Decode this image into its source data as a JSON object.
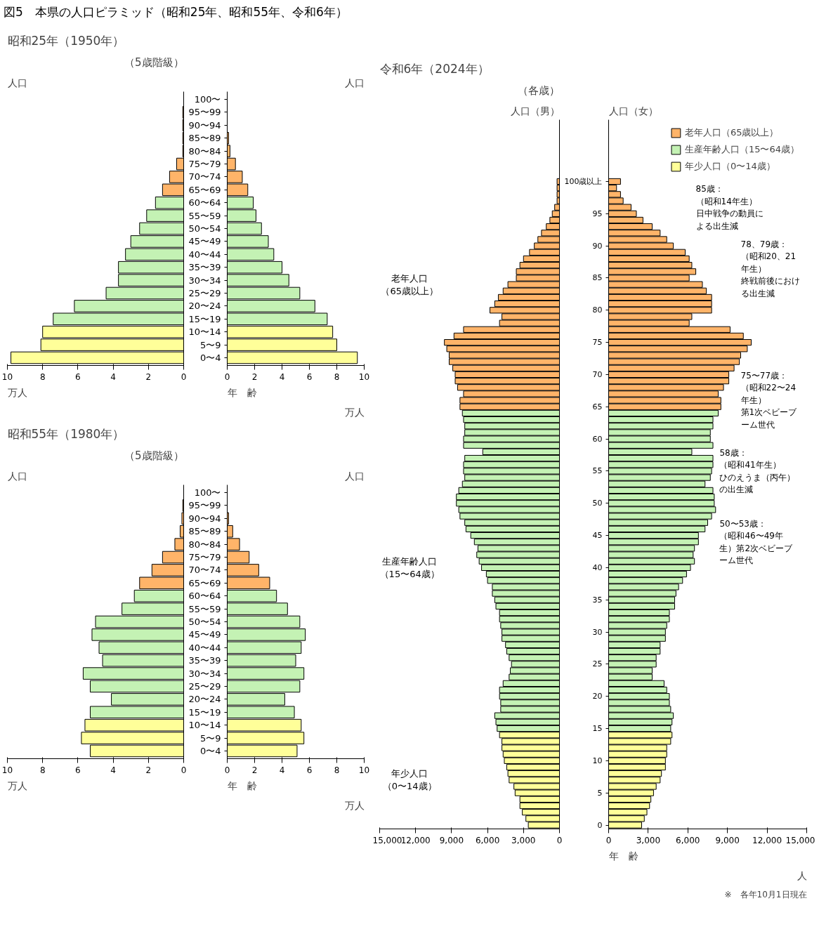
{
  "chart_data": [
    {
      "type": "bar",
      "orientation": "horizontal",
      "title": "昭和25年（1950年）",
      "subtitle": "（5歳階級）",
      "ylabel": "人口",
      "xlabel": "万人",
      "annotations": [
        "図5　本県の人口ピラミッド（昭和25年、昭和55年、令和6年）"
      ],
      "categories": [
        "100〜",
        "95〜99",
        "90〜94",
        "85〜89",
        "80〜84",
        "75〜79",
        "70〜74",
        "65〜69",
        "60〜64",
        "55〜59",
        "50〜54",
        "45〜49",
        "40〜44",
        "35〜39",
        "30〜34",
        "25〜29",
        "20〜24",
        "15〜19",
        "10〜14",
        "5〜9",
        "0〜4"
      ],
      "values": [
        0,
        0.05,
        0.05,
        0.05,
        0.05,
        0.4,
        0.8,
        1.2,
        1.6,
        2.1,
        2.5,
        3.0,
        3.3,
        3.7,
        3.7,
        4.4,
        6.2,
        7.4,
        8.0,
        8.1,
        9.8
      ],
      "colors": [
        "#ffb469",
        "#ffb469",
        "#ffb469",
        "#ffb469",
        "#ffb469",
        "#ffb469",
        "#ffb469",
        "#ffb469",
        "#c4f2b4",
        "#c4f2b4",
        "#c4f2b4",
        "#c4f2b4",
        "#c4f2b4",
        "#c4f2b4",
        "#c4f2b4",
        "#c4f2b4",
        "#c4f2b4",
        "#c4f2b4",
        "#ffff99",
        "#ffff99",
        "#ffff99"
      ],
      "xlim": [
        10,
        0
      ],
      "xticks": [
        0,
        2,
        4,
        6,
        8,
        10
      ],
      "tick_labels": "x"
    },
    {
      "type": "bar",
      "orientation": "horizontal",
      "ylabel": "人口",
      "xlabel": "万人",
      "annotations": [
        "年　齢"
      ],
      "categories": [
        "100〜",
        "95〜99",
        "90〜94",
        "85〜89",
        "80〜84",
        "75〜79",
        "70〜74",
        "65〜69",
        "60〜64",
        "55〜59",
        "50〜54",
        "45〜49",
        "40〜44",
        "35〜39",
        "30〜34",
        "25〜29",
        "20〜24",
        "15〜19",
        "10〜14",
        "5〜9",
        "0〜4"
      ],
      "values": [
        null,
        null,
        null,
        0.1,
        0.2,
        0.6,
        1.1,
        1.5,
        1.9,
        2.1,
        2.5,
        3.0,
        3.4,
        4.0,
        4.5,
        5.3,
        6.4,
        7.3,
        7.7,
        8.0,
        9.5
      ],
      "colors": [
        "#ffb469",
        "#ffb469",
        "#ffb469",
        "#ffb469",
        "#ffb469",
        "#ffb469",
        "#ffb469",
        "#ffb469",
        "#c4f2b4",
        "#c4f2b4",
        "#c4f2b4",
        "#c4f2b4",
        "#c4f2b4",
        "#c4f2b4",
        "#c4f2b4",
        "#c4f2b4",
        "#c4f2b4",
        "#c4f2b4",
        "#ffff99",
        "#ffff99",
        "#ffff99"
      ],
      "xlim": [
        0,
        10
      ],
      "xticks": [
        0,
        2,
        4,
        6,
        8,
        10
      ]
    },
    {
      "type": "bar",
      "orientation": "horizontal",
      "title": "昭和55年（1980年）",
      "subtitle": "（5歳階級）",
      "ylabel": "人口",
      "xlabel": "万人",
      "categories": [
        "100〜",
        "95〜99",
        "90〜94",
        "85〜89",
        "80〜84",
        "75〜79",
        "70〜74",
        "65〜69",
        "60〜64",
        "55〜59",
        "50〜54",
        "45〜49",
        "40〜44",
        "35〜39",
        "30〜34",
        "25〜29",
        "20〜24",
        "15〜19",
        "10〜14",
        "5〜9",
        "0〜4"
      ],
      "values": [
        0,
        0.05,
        0.1,
        0.2,
        0.5,
        1.2,
        1.8,
        2.5,
        2.8,
        3.5,
        5.0,
        5.2,
        4.8,
        4.6,
        5.7,
        5.3,
        4.1,
        5.3,
        5.6,
        5.8,
        5.3
      ],
      "colors": [
        "#ffb469",
        "#ffb469",
        "#ffb469",
        "#ffb469",
        "#ffb469",
        "#ffb469",
        "#ffb469",
        "#ffb469",
        "#c4f2b4",
        "#c4f2b4",
        "#c4f2b4",
        "#c4f2b4",
        "#c4f2b4",
        "#c4f2b4",
        "#c4f2b4",
        "#c4f2b4",
        "#c4f2b4",
        "#c4f2b4",
        "#ffff99",
        "#ffff99",
        "#ffff99"
      ],
      "xlim": [
        10,
        0
      ],
      "xticks": [
        0,
        2,
        4,
        6,
        8,
        10
      ],
      "tick_labels": "x"
    },
    {
      "type": "bar",
      "orientation": "horizontal",
      "ylabel": "人口",
      "xlabel": "万人",
      "annotations": [
        "年　齢"
      ],
      "categories": [
        "100〜",
        "95〜99",
        "90〜94",
        "85〜89",
        "80〜84",
        "75〜79",
        "70〜74",
        "65〜69",
        "60〜64",
        "55〜59",
        "50〜54",
        "45〜49",
        "40〜44",
        "35〜39",
        "30〜34",
        "25〜29",
        "20〜24",
        "15〜19",
        "10〜14",
        "5〜9",
        "0〜4"
      ],
      "values": [
        null,
        null,
        0.1,
        0.4,
        0.9,
        1.6,
        2.3,
        3.1,
        3.6,
        4.4,
        5.3,
        5.7,
        5.4,
        5.0,
        5.6,
        5.3,
        4.2,
        4.9,
        5.4,
        5.6,
        5.1
      ],
      "colors": [
        "#ffb469",
        "#ffb469",
        "#ffb469",
        "#ffb469",
        "#ffb469",
        "#ffb469",
        "#ffb469",
        "#ffb469",
        "#c4f2b4",
        "#c4f2b4",
        "#c4f2b4",
        "#c4f2b4",
        "#c4f2b4",
        "#c4f2b4",
        "#c4f2b4",
        "#c4f2b4",
        "#c4f2b4",
        "#c4f2b4",
        "#ffff99",
        "#ffff99",
        "#ffff99"
      ],
      "xlim": [
        0,
        10
      ],
      "xticks": [
        0,
        2,
        4,
        6,
        8,
        10
      ]
    },
    {
      "type": "bar",
      "orientation": "horizontal",
      "title": "令和6年（2024年）",
      "subtitle": "（各歳）",
      "ylabel": "人口（男）",
      "annotations": [
        "老年人口（65歳以上）",
        "生産年齢人口（15〜64歳）",
        "年少人口（0〜14歳）"
      ],
      "categories": [
        "100歳以上",
        null,
        null,
        null,
        null,
        "95",
        null,
        null,
        null,
        null,
        "90",
        null,
        null,
        null,
        null,
        "85",
        null,
        null,
        null,
        null,
        "80",
        null,
        null,
        null,
        null,
        "75",
        null,
        null,
        null,
        null,
        "70",
        null,
        null,
        null,
        null,
        "65",
        null,
        null,
        null,
        null,
        "60",
        null,
        null,
        null,
        null,
        "55",
        null,
        null,
        null,
        null,
        "50",
        null,
        null,
        null,
        null,
        "45",
        null,
        null,
        null,
        null,
        "40",
        null,
        null,
        null,
        null,
        "35",
        null,
        null,
        null,
        null,
        "30",
        null,
        null,
        null,
        null,
        "25",
        null,
        null,
        null,
        null,
        "20",
        null,
        null,
        null,
        null,
        "15",
        null,
        null,
        null,
        null,
        "10",
        null,
        null,
        null,
        null,
        "5",
        null,
        null,
        null,
        null,
        "0"
      ],
      "values": [
        200,
        200,
        200,
        200,
        400,
        600,
        800,
        1100,
        1500,
        1800,
        2100,
        2500,
        3000,
        3300,
        3600,
        3600,
        4300,
        4700,
        5100,
        5400,
        5800,
        4800,
        5000,
        8000,
        8800,
        9600,
        9400,
        9200,
        9200,
        8900,
        8700,
        8700,
        8500,
        8000,
        8300,
        8300,
        8100,
        8000,
        7900,
        7900,
        8000,
        8000,
        6400,
        7900,
        8000,
        8000,
        7900,
        8100,
        8400,
        8600,
        8600,
        8400,
        8300,
        7900,
        7800,
        7400,
        7100,
        6800,
        6900,
        6700,
        6500,
        6100,
        6000,
        5600,
        5600,
        5400,
        5300,
        5000,
        5000,
        4900,
        4800,
        4800,
        4500,
        4400,
        4200,
        4000,
        4100,
        4200,
        4700,
        5000,
        5000,
        4900,
        4900,
        5400,
        5300,
        5200,
        5000,
        4800,
        4800,
        4700,
        4600,
        4400,
        4300,
        4200,
        3800,
        3700,
        3300,
        3300,
        3100,
        2800,
        2600
      ],
      "colors": [
        "#ffb469",
        "#ffb469",
        "#ffb469",
        "#ffb469",
        "#ffb469",
        "#ffb469",
        "#ffb469",
        "#ffb469",
        "#ffb469",
        "#ffb469",
        "#ffb469",
        "#ffb469",
        "#ffb469",
        "#ffb469",
        "#ffb469",
        "#ffb469",
        "#ffb469",
        "#ffb469",
        "#ffb469",
        "#ffb469",
        "#ffb469",
        "#ffb469",
        "#ffb469",
        "#ffb469",
        "#ffb469",
        "#ffb469",
        "#ffb469",
        "#ffb469",
        "#ffb469",
        "#ffb469",
        "#ffb469",
        "#ffb469",
        "#ffb469",
        "#ffb469",
        "#ffb469",
        "#ffb469",
        "#c4f2b4",
        "#c4f2b4",
        "#c4f2b4",
        "#c4f2b4",
        "#c4f2b4",
        "#c4f2b4",
        "#c4f2b4",
        "#c4f2b4",
        "#c4f2b4",
        "#c4f2b4",
        "#c4f2b4",
        "#c4f2b4",
        "#c4f2b4",
        "#c4f2b4",
        "#c4f2b4",
        "#c4f2b4",
        "#c4f2b4",
        "#c4f2b4",
        "#c4f2b4",
        "#c4f2b4",
        "#c4f2b4",
        "#c4f2b4",
        "#c4f2b4",
        "#c4f2b4",
        "#c4f2b4",
        "#c4f2b4",
        "#c4f2b4",
        "#c4f2b4",
        "#c4f2b4",
        "#c4f2b4",
        "#c4f2b4",
        "#c4f2b4",
        "#c4f2b4",
        "#c4f2b4",
        "#c4f2b4",
        "#c4f2b4",
        "#c4f2b4",
        "#c4f2b4",
        "#c4f2b4",
        "#c4f2b4",
        "#c4f2b4",
        "#c4f2b4",
        "#c4f2b4",
        "#c4f2b4",
        "#c4f2b4",
        "#c4f2b4",
        "#c4f2b4",
        "#c4f2b4",
        "#c4f2b4",
        "#c4f2b4",
        "#ffff99",
        "#ffff99",
        "#ffff99",
        "#ffff99",
        "#ffff99",
        "#ffff99",
        "#ffff99",
        "#ffff99",
        "#ffff99",
        "#ffff99",
        "#ffff99",
        "#ffff99",
        "#ffff99",
        "#ffff99",
        "#ffff99"
      ],
      "xlim": [
        15000,
        0
      ],
      "xticks": [
        0,
        {
          "value": 3000,
          "label": "3,000"
        },
        {
          "value": 6000,
          "label": "6,000"
        },
        {
          "value": 9000,
          "label": "9,000"
        },
        {
          "value": 12000,
          "label": "12,000"
        },
        {
          "value": 15000,
          "label": "15,000"
        }
      ],
      "tick_labels": "x"
    },
    {
      "type": "bar",
      "orientation": "horizontal",
      "ylabel": "人口（女）",
      "xlabel": "人",
      "legend": "top right",
      "annotations": [
        "年　齢",
        "85歳：（昭和14年生）日中戦争の動員による出生減",
        "78、79歳：（昭和20、21年生）終戦前後における出生減",
        "75〜77歳：（昭和22〜24年生）第1次ベビーブーム世代",
        "58歳：（昭和41年生）ひのえうま（丙午）の出生減",
        "50〜53歳：（昭和46〜49年生）第2次ベビーブーム世代",
        "※　各年10月1日現在"
      ],
      "categories": [
        "100歳以上",
        null,
        null,
        null,
        null,
        "95",
        null,
        null,
        null,
        null,
        "90",
        null,
        null,
        null,
        null,
        "85",
        null,
        null,
        null,
        null,
        "80",
        null,
        null,
        null,
        null,
        "75",
        null,
        null,
        null,
        null,
        "70",
        null,
        null,
        null,
        null,
        "65",
        null,
        null,
        null,
        null,
        "60",
        null,
        null,
        null,
        null,
        "55",
        null,
        null,
        null,
        null,
        "50",
        null,
        null,
        null,
        null,
        "45",
        null,
        null,
        null,
        null,
        "40",
        null,
        null,
        null,
        null,
        "35",
        null,
        null,
        null,
        null,
        "30",
        null,
        null,
        null,
        null,
        "25",
        null,
        null,
        null,
        null,
        "20",
        null,
        null,
        null,
        null,
        "15",
        null,
        null,
        null,
        null,
        "10",
        null,
        null,
        null,
        null,
        "5",
        null,
        null,
        null,
        null,
        "0"
      ],
      "series": [
        {
          "name": "老年人口（65歳以上）",
          "color": "#ffb469",
          "values": [
            900,
            600,
            900,
            1100,
            1700,
            2100,
            2600,
            3300,
            3900,
            4400,
            4900,
            5800,
            6100,
            6300,
            6600,
            6100,
            7100,
            7400,
            7800,
            7800,
            7800,
            6300,
            6100,
            9200,
            10200,
            10800,
            10500,
            10000,
            9900,
            9500,
            9100,
            9100,
            8700,
            8300,
            8500,
            8500,
            null,
            null,
            null,
            null,
            null,
            null,
            null,
            null,
            null,
            null,
            null,
            null,
            null,
            null,
            null,
            null,
            null,
            null,
            null,
            null,
            null,
            null,
            null,
            null,
            null,
            null,
            null,
            null,
            null,
            null,
            null,
            null,
            null,
            null,
            null,
            null,
            null,
            null,
            null,
            null,
            null,
            null,
            null,
            null,
            null,
            null,
            null,
            null,
            null,
            null,
            null,
            null,
            null,
            null,
            null,
            null,
            null,
            null,
            null,
            null,
            null,
            null,
            null,
            null,
            null
          ]
        },
        {
          "name": "生産年齢人口（15〜64歳）",
          "color": "#c4f2b4",
          "values": [
            null,
            null,
            null,
            null,
            null,
            null,
            null,
            null,
            null,
            null,
            null,
            null,
            null,
            null,
            null,
            null,
            null,
            null,
            null,
            null,
            null,
            null,
            null,
            null,
            null,
            null,
            null,
            null,
            null,
            null,
            null,
            null,
            null,
            null,
            null,
            null,
            8300,
            7900,
            7900,
            7700,
            7700,
            7900,
            6300,
            7900,
            7900,
            7800,
            7700,
            7300,
            7900,
            8000,
            8000,
            8100,
            7800,
            7500,
            7300,
            6800,
            6800,
            6500,
            6400,
            6500,
            6200,
            5900,
            5600,
            5300,
            5100,
            5000,
            5000,
            4600,
            4600,
            4400,
            4300,
            4300,
            3900,
            3900,
            3600,
            3600,
            3300,
            3300,
            4200,
            4400,
            4600,
            4600,
            4700,
            4900,
            4800,
            4700,
            null,
            null,
            null,
            null,
            null,
            null,
            null,
            null,
            null,
            null,
            null,
            null,
            null,
            null,
            null
          ]
        },
        {
          "name": "年少人口（0〜14歳）",
          "color": "#ffff99",
          "values": [
            null,
            null,
            null,
            null,
            null,
            null,
            null,
            null,
            null,
            null,
            null,
            null,
            null,
            null,
            null,
            null,
            null,
            null,
            null,
            null,
            null,
            null,
            null,
            null,
            null,
            null,
            null,
            null,
            null,
            null,
            null,
            null,
            null,
            null,
            null,
            null,
            null,
            null,
            null,
            null,
            null,
            null,
            null,
            null,
            null,
            null,
            null,
            null,
            null,
            null,
            null,
            null,
            null,
            null,
            null,
            null,
            null,
            null,
            null,
            null,
            null,
            null,
            null,
            null,
            null,
            null,
            null,
            null,
            null,
            null,
            null,
            null,
            null,
            null,
            null,
            null,
            null,
            null,
            null,
            null,
            null,
            null,
            null,
            null,
            null,
            null,
            4800,
            4700,
            4400,
            4400,
            4300,
            4300,
            4000,
            3900,
            3600,
            3400,
            3200,
            3100,
            2900,
            2700,
            2500
          ]
        }
      ],
      "xlim": [
        0,
        15000
      ],
      "xticks": [
        0,
        {
          "value": 3000,
          "label": "3,000"
        },
        {
          "value": 6000,
          "label": "6,000"
        },
        {
          "value": 9000,
          "label": "9,000"
        },
        {
          "value": 12000,
          "label": "12,000"
        },
        {
          "value": 15000,
          "label": "15,000"
        }
      ]
    }
  ]
}
